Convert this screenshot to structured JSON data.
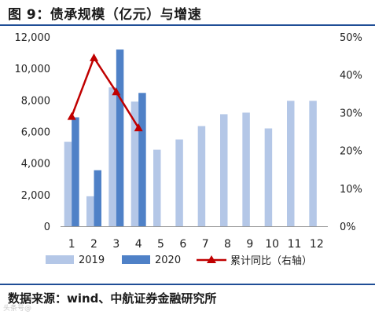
{
  "title": "图 9：债承规模（亿元）与增速",
  "source": "数据来源：wind、中航证券金融研究所",
  "watermark": "头条号@",
  "chart_data": {
    "type": "bar",
    "categories": [
      "1",
      "2",
      "3",
      "4",
      "5",
      "6",
      "7",
      "8",
      "9",
      "10",
      "11",
      "12"
    ],
    "series": [
      {
        "name": "2019",
        "kind": "bar",
        "axis": "left",
        "color": "#b4c7e7",
        "values": [
          5350,
          1900,
          8800,
          7900,
          4850,
          5500,
          6350,
          7100,
          7200,
          6200,
          7950,
          7950
        ]
      },
      {
        "name": "2020",
        "kind": "bar",
        "axis": "left",
        "color": "#4f81c7",
        "values": [
          6900,
          3550,
          11200,
          8450,
          null,
          null,
          null,
          null,
          null,
          null,
          null,
          null
        ]
      },
      {
        "name": "累计同比（右轴）",
        "kind": "line",
        "axis": "right",
        "color": "#c00000",
        "values": [
          29,
          44.5,
          35.5,
          26,
          null,
          null,
          null,
          null,
          null,
          null,
          null,
          null
        ]
      }
    ],
    "y_left": {
      "min": 0,
      "max": 12000,
      "ticks": [
        0,
        2000,
        4000,
        6000,
        8000,
        10000,
        12000
      ],
      "tick_labels": [
        "0",
        "2,000",
        "4,000",
        "6,000",
        "8,000",
        "10,000",
        "12,000"
      ]
    },
    "y_right": {
      "min": 0,
      "max": 50,
      "ticks": [
        0,
        10,
        20,
        30,
        40,
        50
      ],
      "tick_labels": [
        "0%",
        "10%",
        "20%",
        "30%",
        "40%",
        "50%"
      ]
    },
    "legend_position": "bottom",
    "grid": false
  }
}
